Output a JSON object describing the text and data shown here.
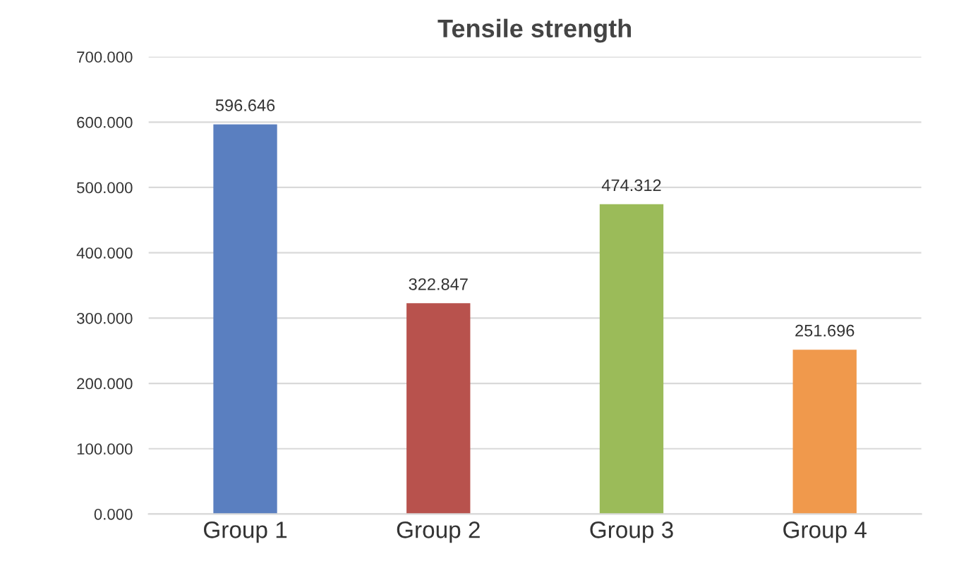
{
  "chart_data": {
    "type": "bar",
    "title": "Tensile strength",
    "categories": [
      "Group 1",
      "Group 2",
      "Group 3",
      "Group 4"
    ],
    "values": [
      596.646,
      322.847,
      474.312,
      251.696
    ],
    "colors": [
      "#5a7fc0",
      "#b8524d",
      "#9bbb59",
      "#f0994c"
    ],
    "ylim": [
      0,
      700
    ],
    "yticks": [
      {
        "value": 0,
        "label": "0.000"
      },
      {
        "value": 100,
        "label": "100.000"
      },
      {
        "value": 200,
        "label": "200.000"
      },
      {
        "value": 300,
        "label": "300.000"
      },
      {
        "value": 400,
        "label": "400.000"
      },
      {
        "value": 500,
        "label": "500.000"
      },
      {
        "value": 600,
        "label": "600.000"
      },
      {
        "value": 700,
        "label": "700.000"
      }
    ],
    "grid": "y",
    "data_labels": true
  }
}
